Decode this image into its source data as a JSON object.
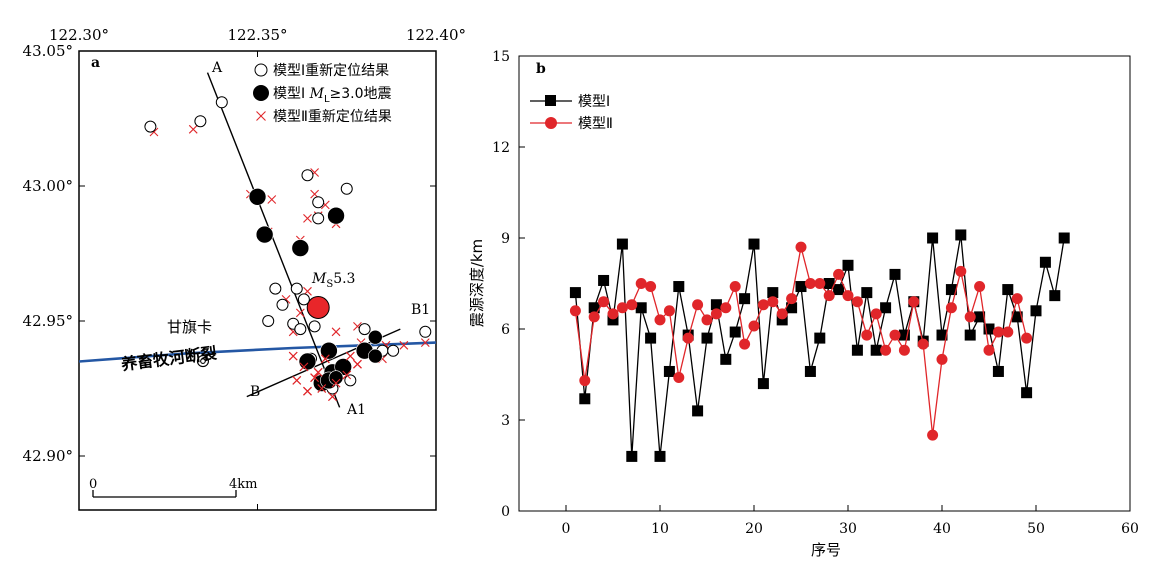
{
  "chart_data": [
    {
      "type": "scatter",
      "panel_label": "a",
      "x_ticks": [
        "122.30°",
        "122.35°",
        "122.40°"
      ],
      "y_ticks": [
        "43.05°",
        "43.00°",
        "42.95°",
        "42.90°"
      ],
      "xlim": [
        122.3,
        122.4
      ],
      "ylim": [
        42.88,
        43.05
      ],
      "legend_location": "top-right",
      "legend": [
        {
          "marker": "open-circle",
          "text": "模型Ⅰ重新定位结果"
        },
        {
          "marker": "filled-circle",
          "text_pre": "模型Ⅰ ",
          "text_ml": "M",
          "text_sub": "L",
          "text_post": "≥3.0地震"
        },
        {
          "marker": "red-cross",
          "text": "模型Ⅱ重新定位结果"
        }
      ],
      "profile_AA1": {
        "start_label": "A",
        "end_label": "A1",
        "start": [
          122.336,
          43.042
        ],
        "end": [
          122.373,
          42.918
        ]
      },
      "profile_BB1": {
        "start_label": "B",
        "end_label": "B1",
        "start": [
          122.347,
          42.922
        ],
        "end": [
          122.39,
          42.947
        ]
      },
      "mainshock": {
        "lon": 122.367,
        "lat": 42.955,
        "label_m": "M",
        "label_sub": "S",
        "label_val": "5.3",
        "color": "#e8262a"
      },
      "town": {
        "name": "甘旗卡",
        "lon": 122.342,
        "lat": 42.947
      },
      "fault": {
        "name": "养畜牧河断裂",
        "color": "#2457a4",
        "points": [
          [
            122.3,
            42.935
          ],
          [
            122.33,
            42.938
          ],
          [
            122.36,
            42.94
          ],
          [
            122.38,
            42.941
          ],
          [
            122.4,
            42.942
          ]
        ]
      },
      "scale_bar": {
        "start_label": "0",
        "end_label": "4km",
        "lon_from": 122.305,
        "lon_to": 122.35,
        "lat": 42.898
      },
      "open_circles": [
        [
          122.32,
          43.022
        ],
        [
          122.334,
          43.024
        ],
        [
          122.34,
          43.031
        ],
        [
          122.364,
          43.004
        ],
        [
          122.367,
          42.994
        ],
        [
          122.375,
          42.999
        ],
        [
          122.367,
          42.988
        ],
        [
          122.361,
          42.962
        ],
        [
          122.355,
          42.962
        ],
        [
          122.363,
          42.958
        ],
        [
          122.357,
          42.956
        ],
        [
          122.36,
          42.949
        ],
        [
          122.362,
          42.947
        ],
        [
          122.366,
          42.948
        ],
        [
          122.353,
          42.95
        ],
        [
          122.38,
          42.947
        ],
        [
          122.397,
          42.946
        ],
        [
          122.385,
          42.939
        ],
        [
          122.388,
          42.939
        ],
        [
          122.371,
          42.925
        ],
        [
          122.376,
          42.928
        ],
        [
          122.365,
          42.936
        ]
      ],
      "filled_circles": [
        {
          "lon": 122.35,
          "lat": 42.996,
          "size": "large"
        },
        {
          "lon": 122.352,
          "lat": 42.982,
          "size": "large"
        },
        {
          "lon": 122.362,
          "lat": 42.977,
          "size": "large"
        },
        {
          "lon": 122.372,
          "lat": 42.989,
          "size": "large"
        },
        {
          "lon": 122.383,
          "lat": 42.944,
          "size": "medium"
        },
        {
          "lon": 122.37,
          "lat": 42.939,
          "size": "large"
        },
        {
          "lon": 122.38,
          "lat": 42.939,
          "size": "large"
        },
        {
          "lon": 122.383,
          "lat": 42.937,
          "size": "medium"
        },
        {
          "lon": 122.364,
          "lat": 42.935,
          "size": "large"
        },
        {
          "lon": 122.371,
          "lat": 42.931,
          "size": "large"
        },
        {
          "lon": 122.374,
          "lat": 42.933,
          "size": "large"
        },
        {
          "lon": 122.368,
          "lat": 42.927,
          "size": "large"
        },
        {
          "lon": 122.37,
          "lat": 42.928,
          "size": "large"
        },
        {
          "lon": 122.372,
          "lat": 42.929,
          "size": "medium"
        }
      ],
      "red_crosses": [
        [
          122.321,
          43.02
        ],
        [
          122.332,
          43.021
        ],
        [
          122.348,
          42.997
        ],
        [
          122.354,
          42.995
        ],
        [
          122.353,
          42.983
        ],
        [
          122.362,
          42.98
        ],
        [
          122.366,
          43.005
        ],
        [
          122.366,
          42.997
        ],
        [
          122.369,
          42.993
        ],
        [
          122.367,
          42.989
        ],
        [
          122.364,
          42.988
        ],
        [
          122.372,
          42.986
        ],
        [
          122.364,
          42.961
        ],
        [
          122.358,
          42.958
        ],
        [
          122.362,
          42.953
        ],
        [
          122.36,
          42.946
        ],
        [
          122.372,
          42.946
        ],
        [
          122.378,
          42.948
        ],
        [
          122.379,
          42.942
        ],
        [
          122.386,
          42.941
        ],
        [
          122.391,
          42.941
        ],
        [
          122.36,
          42.937
        ],
        [
          122.363,
          42.933
        ],
        [
          122.366,
          42.929
        ],
        [
          122.361,
          42.928
        ],
        [
          122.364,
          42.924
        ],
        [
          122.368,
          42.925
        ],
        [
          122.372,
          42.927
        ],
        [
          122.375,
          42.93
        ],
        [
          122.378,
          42.934
        ],
        [
          122.376,
          42.937
        ],
        [
          122.369,
          42.936
        ],
        [
          122.367,
          42.931
        ],
        [
          122.385,
          42.936
        ],
        [
          122.397,
          42.942
        ],
        [
          122.371,
          42.922
        ]
      ]
    },
    {
      "type": "line",
      "panel_label": "b",
      "xlabel": "序号",
      "ylabel": "震源深度/km",
      "xlim": [
        -5,
        60
      ],
      "ylim": [
        0,
        15
      ],
      "x_ticks": [
        0,
        10,
        20,
        30,
        40,
        50,
        60
      ],
      "y_ticks": [
        0,
        3,
        6,
        9,
        12,
        15
      ],
      "legend_location": "top-left",
      "series": [
        {
          "name": "模型Ⅰ",
          "color": "#000000",
          "marker": "square",
          "x": [
            1,
            2,
            3,
            4,
            5,
            6,
            7,
            8,
            9,
            10,
            11,
            12,
            13,
            14,
            15,
            16,
            17,
            18,
            19,
            20,
            21,
            22,
            23,
            24,
            25,
            26,
            27,
            28,
            29,
            30,
            31,
            32,
            33,
            34,
            35,
            36,
            37,
            38,
            39,
            40,
            41,
            42,
            43,
            44,
            45,
            46,
            47,
            48,
            49,
            50,
            51,
            52,
            53
          ],
          "y": [
            7.2,
            3.7,
            6.7,
            7.6,
            6.3,
            8.8,
            1.8,
            6.7,
            5.7,
            1.8,
            4.6,
            7.4,
            5.8,
            3.3,
            5.7,
            6.8,
            5.0,
            5.9,
            7.0,
            8.8,
            4.2,
            7.2,
            6.3,
            6.7,
            7.4,
            4.6,
            5.7,
            7.5,
            7.3,
            8.1,
            5.3,
            7.2,
            5.3,
            6.7,
            7.8,
            5.8,
            6.9,
            5.6,
            9.0,
            5.8,
            7.3,
            9.1,
            5.8,
            6.4,
            6.0,
            4.6,
            7.3,
            6.4,
            3.9,
            6.6,
            8.2,
            7.1,
            9.0
          ]
        },
        {
          "name": "模型Ⅱ",
          "color": "#e0262a",
          "marker": "circle",
          "x": [
            1,
            2,
            3,
            4,
            5,
            6,
            7,
            8,
            9,
            10,
            11,
            12,
            13,
            14,
            15,
            16,
            17,
            18,
            19,
            20,
            21,
            22,
            23,
            24,
            25,
            26,
            27,
            28,
            29,
            30,
            31,
            32,
            33,
            34,
            35,
            36,
            37,
            38,
            39,
            40,
            41,
            42,
            43,
            44,
            45,
            46,
            47,
            48,
            49
          ],
          "y": [
            6.6,
            4.3,
            6.4,
            6.9,
            6.5,
            6.7,
            6.8,
            7.5,
            7.4,
            6.3,
            6.6,
            4.4,
            5.7,
            6.8,
            6.3,
            6.5,
            6.7,
            7.4,
            5.5,
            6.1,
            6.8,
            6.9,
            6.5,
            7.0,
            8.7,
            7.5,
            7.5,
            7.1,
            7.8,
            7.1,
            6.9,
            5.8,
            6.5,
            5.3,
            5.8,
            5.3,
            6.9,
            5.5,
            2.5,
            5.0,
            6.7,
            7.9,
            6.4,
            7.4,
            5.3,
            5.9,
            5.9,
            7.0,
            5.7
          ]
        }
      ]
    }
  ]
}
